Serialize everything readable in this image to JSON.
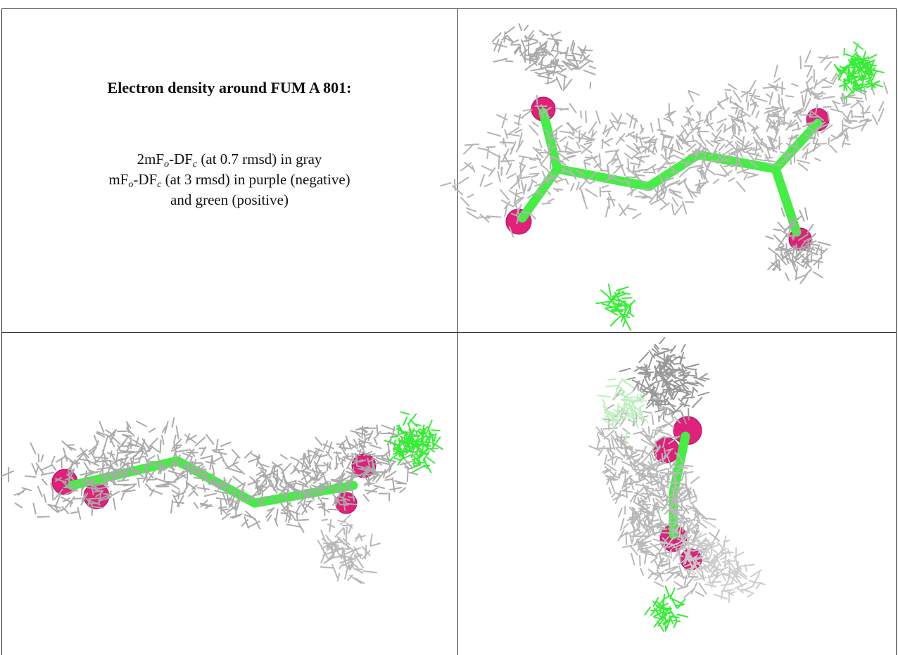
{
  "caption": {
    "title": "Electron density around FUM A 801:",
    "lines": [
      [
        "2mF",
        "o",
        "-DF",
        "c",
        " (at 0.7 rmsd) in gray"
      ],
      [
        "mF",
        "o",
        "-DF",
        "c",
        " (at 3 rmsd) in purple (negative)"
      ],
      [
        "and green (positive)"
      ]
    ]
  }
}
